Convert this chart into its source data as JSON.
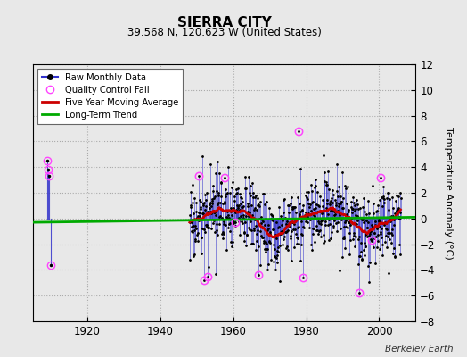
{
  "title": "SIERRA CITY",
  "subtitle": "39.568 N, 120.623 W (United States)",
  "ylabel": "Temperature Anomaly (°C)",
  "credit": "Berkeley Earth",
  "xlim": [
    1905,
    2010
  ],
  "ylim": [
    -8,
    12
  ],
  "yticks": [
    -8,
    -6,
    -4,
    -2,
    0,
    2,
    4,
    6,
    8,
    10,
    12
  ],
  "xticks": [
    1920,
    1940,
    1960,
    1980,
    2000
  ],
  "bg_color": "#e8e8e8",
  "plot_bg_color": "#e8e8e8",
  "line_color": "#3333cc",
  "ma_color": "#cc0000",
  "trend_color": "#00aa00",
  "qc_color": "#ff44ff",
  "seed": 17
}
